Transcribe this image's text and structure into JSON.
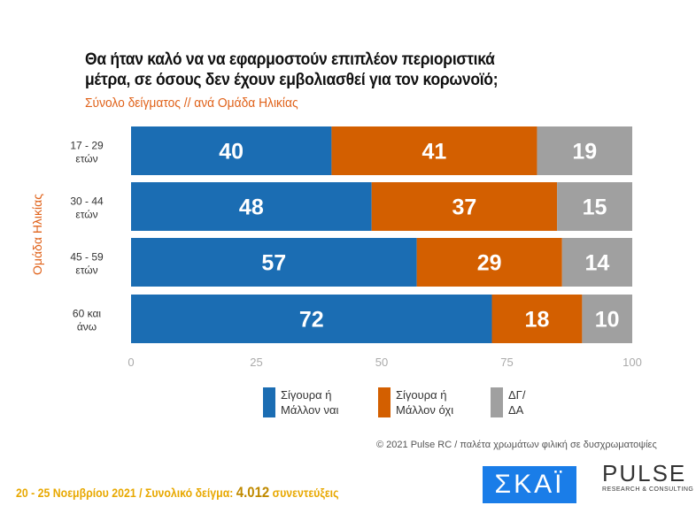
{
  "title_line1": "Θα ήταν καλό να να εφαρμοστούν επιπλέον περιοριστικά",
  "title_line2": "μέτρα, σε όσους δεν έχουν εμβολιασθεί για τον κορωνοϊό;",
  "subtitle": "Σύνολο δείγματος // ανά Ομάδα Ηλικίας",
  "chart_data": {
    "type": "bar",
    "orientation": "horizontal",
    "stacked": true,
    "ylabel": "Ομάδα Ηλικίας",
    "categories": [
      [
        "17 - 29",
        "ετών"
      ],
      [
        "30 - 44",
        "ετών"
      ],
      [
        "45 - 59",
        "ετών"
      ],
      [
        "60 και",
        "άνω"
      ]
    ],
    "series": [
      {
        "name": "Σίγουρα ή Μάλλον ναι",
        "name_lines": [
          "Σίγουρα ή",
          "Μάλλον ναι"
        ],
        "color": "#1b6db3",
        "values": [
          40,
          48,
          57,
          72
        ]
      },
      {
        "name": "Σίγουρα ή Μάλλον όχι",
        "name_lines": [
          "Σίγουρα ή",
          "Μάλλον όχι"
        ],
        "color": "#d35f00",
        "values": [
          41,
          37,
          29,
          18
        ]
      },
      {
        "name": "ΔΓ/ΔΑ",
        "name_lines": [
          "ΔΓ/",
          "ΔΑ"
        ],
        "color": "#a0a0a0",
        "values": [
          19,
          15,
          14,
          10
        ]
      }
    ],
    "xlim": [
      0,
      100
    ],
    "xticks": [
      "0",
      "25",
      "50",
      "75",
      "100"
    ],
    "grid": false,
    "legend": "bottom"
  },
  "copyright": "© 2021 Pulse RC  /  παλέτα χρωμάτων φιλική σε δυσχρωματοψίες",
  "footer": {
    "dates": "20 - 25  Νοεμβρίου 2021  /  Συνολικό δείγμα: ",
    "sample": "4.012",
    "suffix": " συνεντεύξεις"
  },
  "logos": {
    "skai": "ΣΚΑΪ",
    "pulse": "PULSE",
    "pulse_sub": "RESEARCH & CONSULTING"
  }
}
